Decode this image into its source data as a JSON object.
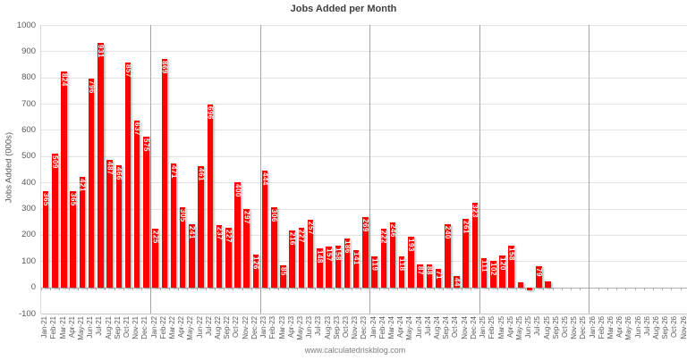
{
  "title": "Jobs Added per Month",
  "footer": "www.calculatedriskblog.com",
  "chart_data": {
    "type": "bar",
    "title": "Jobs Added per Month",
    "xlabel": "",
    "ylabel": "Jobs Added (000s)",
    "ylim": [
      -100,
      1000
    ],
    "ytick_step": 100,
    "grid": true,
    "bar_color": "#ff0000",
    "bar_label_color": "#ffffff",
    "axis_text_color": "#595959",
    "categories": [
      "Jan-21",
      "Feb-21",
      "Mar-21",
      "Apr-21",
      "May-21",
      "Jun-21",
      "Jul-21",
      "Aug-21",
      "Sep-21",
      "Oct-21",
      "Nov-21",
      "Dec-21",
      "Jan-22",
      "Feb-22",
      "Mar-22",
      "Apr-22",
      "May-22",
      "Jun-22",
      "Jul-22",
      "Aug-22",
      "Sep-22",
      "Oct-22",
      "Nov-22",
      "Dec-22",
      "Jan-23",
      "Feb-23",
      "Mar-23",
      "Apr-23",
      "May-23",
      "Jun-23",
      "Jul-23",
      "Aug-23",
      "Sep-23",
      "Oct-23",
      "Nov-23",
      "Dec-23",
      "Jan-24",
      "Feb-24",
      "Mar-24",
      "Apr-24",
      "May-24",
      "Jun-24",
      "Jul-24",
      "Aug-24",
      "Sep-24",
      "Oct-24",
      "Nov-24",
      "Dec-24",
      "Jan-25",
      "Feb-25",
      "Mar-25",
      "Apr-25",
      "May-25",
      "Jun-25",
      "Jul-25",
      "Aug-25",
      "Sep-25",
      "Oct-25",
      "Nov-25",
      "Dec-25",
      "Jan-26",
      "Feb-26",
      "Mar-26",
      "Apr-26",
      "May-26",
      "Jun-26",
      "Jul-26",
      "Aug-26",
      "Sep-26",
      "Oct-26",
      "Nov-26",
      "Dec-26"
    ],
    "values": [
      365,
      509,
      824,
      365,
      421,
      796,
      931,
      487,
      466,
      857,
      637,
      575,
      225,
      869,
      471,
      305,
      241,
      461,
      696,
      237,
      227,
      400,
      297,
      126,
      444,
      306,
      85,
      216,
      227,
      257,
      148,
      157,
      158,
      186,
      141,
      269,
      119,
      222,
      246,
      118,
      193,
      87,
      88,
      71,
      240,
      44,
      261,
      323,
      111,
      102,
      120,
      158,
      19,
      -13,
      79,
      22
    ],
    "bar_labels": [
      "365",
      "509",
      "824",
      "365",
      "421",
      "796",
      "931",
      "487",
      "466",
      "857",
      "637",
      "575",
      "225",
      "869",
      "471",
      "305",
      "241",
      "461",
      "696",
      "237",
      "227",
      "400",
      "297",
      "126",
      "444",
      "306",
      "85",
      "216",
      "227",
      "257",
      "148",
      "157",
      "158",
      "186",
      "141",
      "269",
      "119",
      "222",
      "246",
      "118",
      "193",
      "87",
      "88",
      "71",
      "240",
      "44",
      "261",
      "323",
      "111",
      "102",
      "120",
      "158",
      "",
      "",
      "79",
      ""
    ],
    "year_separator_boundaries": [
      12,
      24,
      36,
      48,
      60
    ],
    "legend": "none"
  }
}
